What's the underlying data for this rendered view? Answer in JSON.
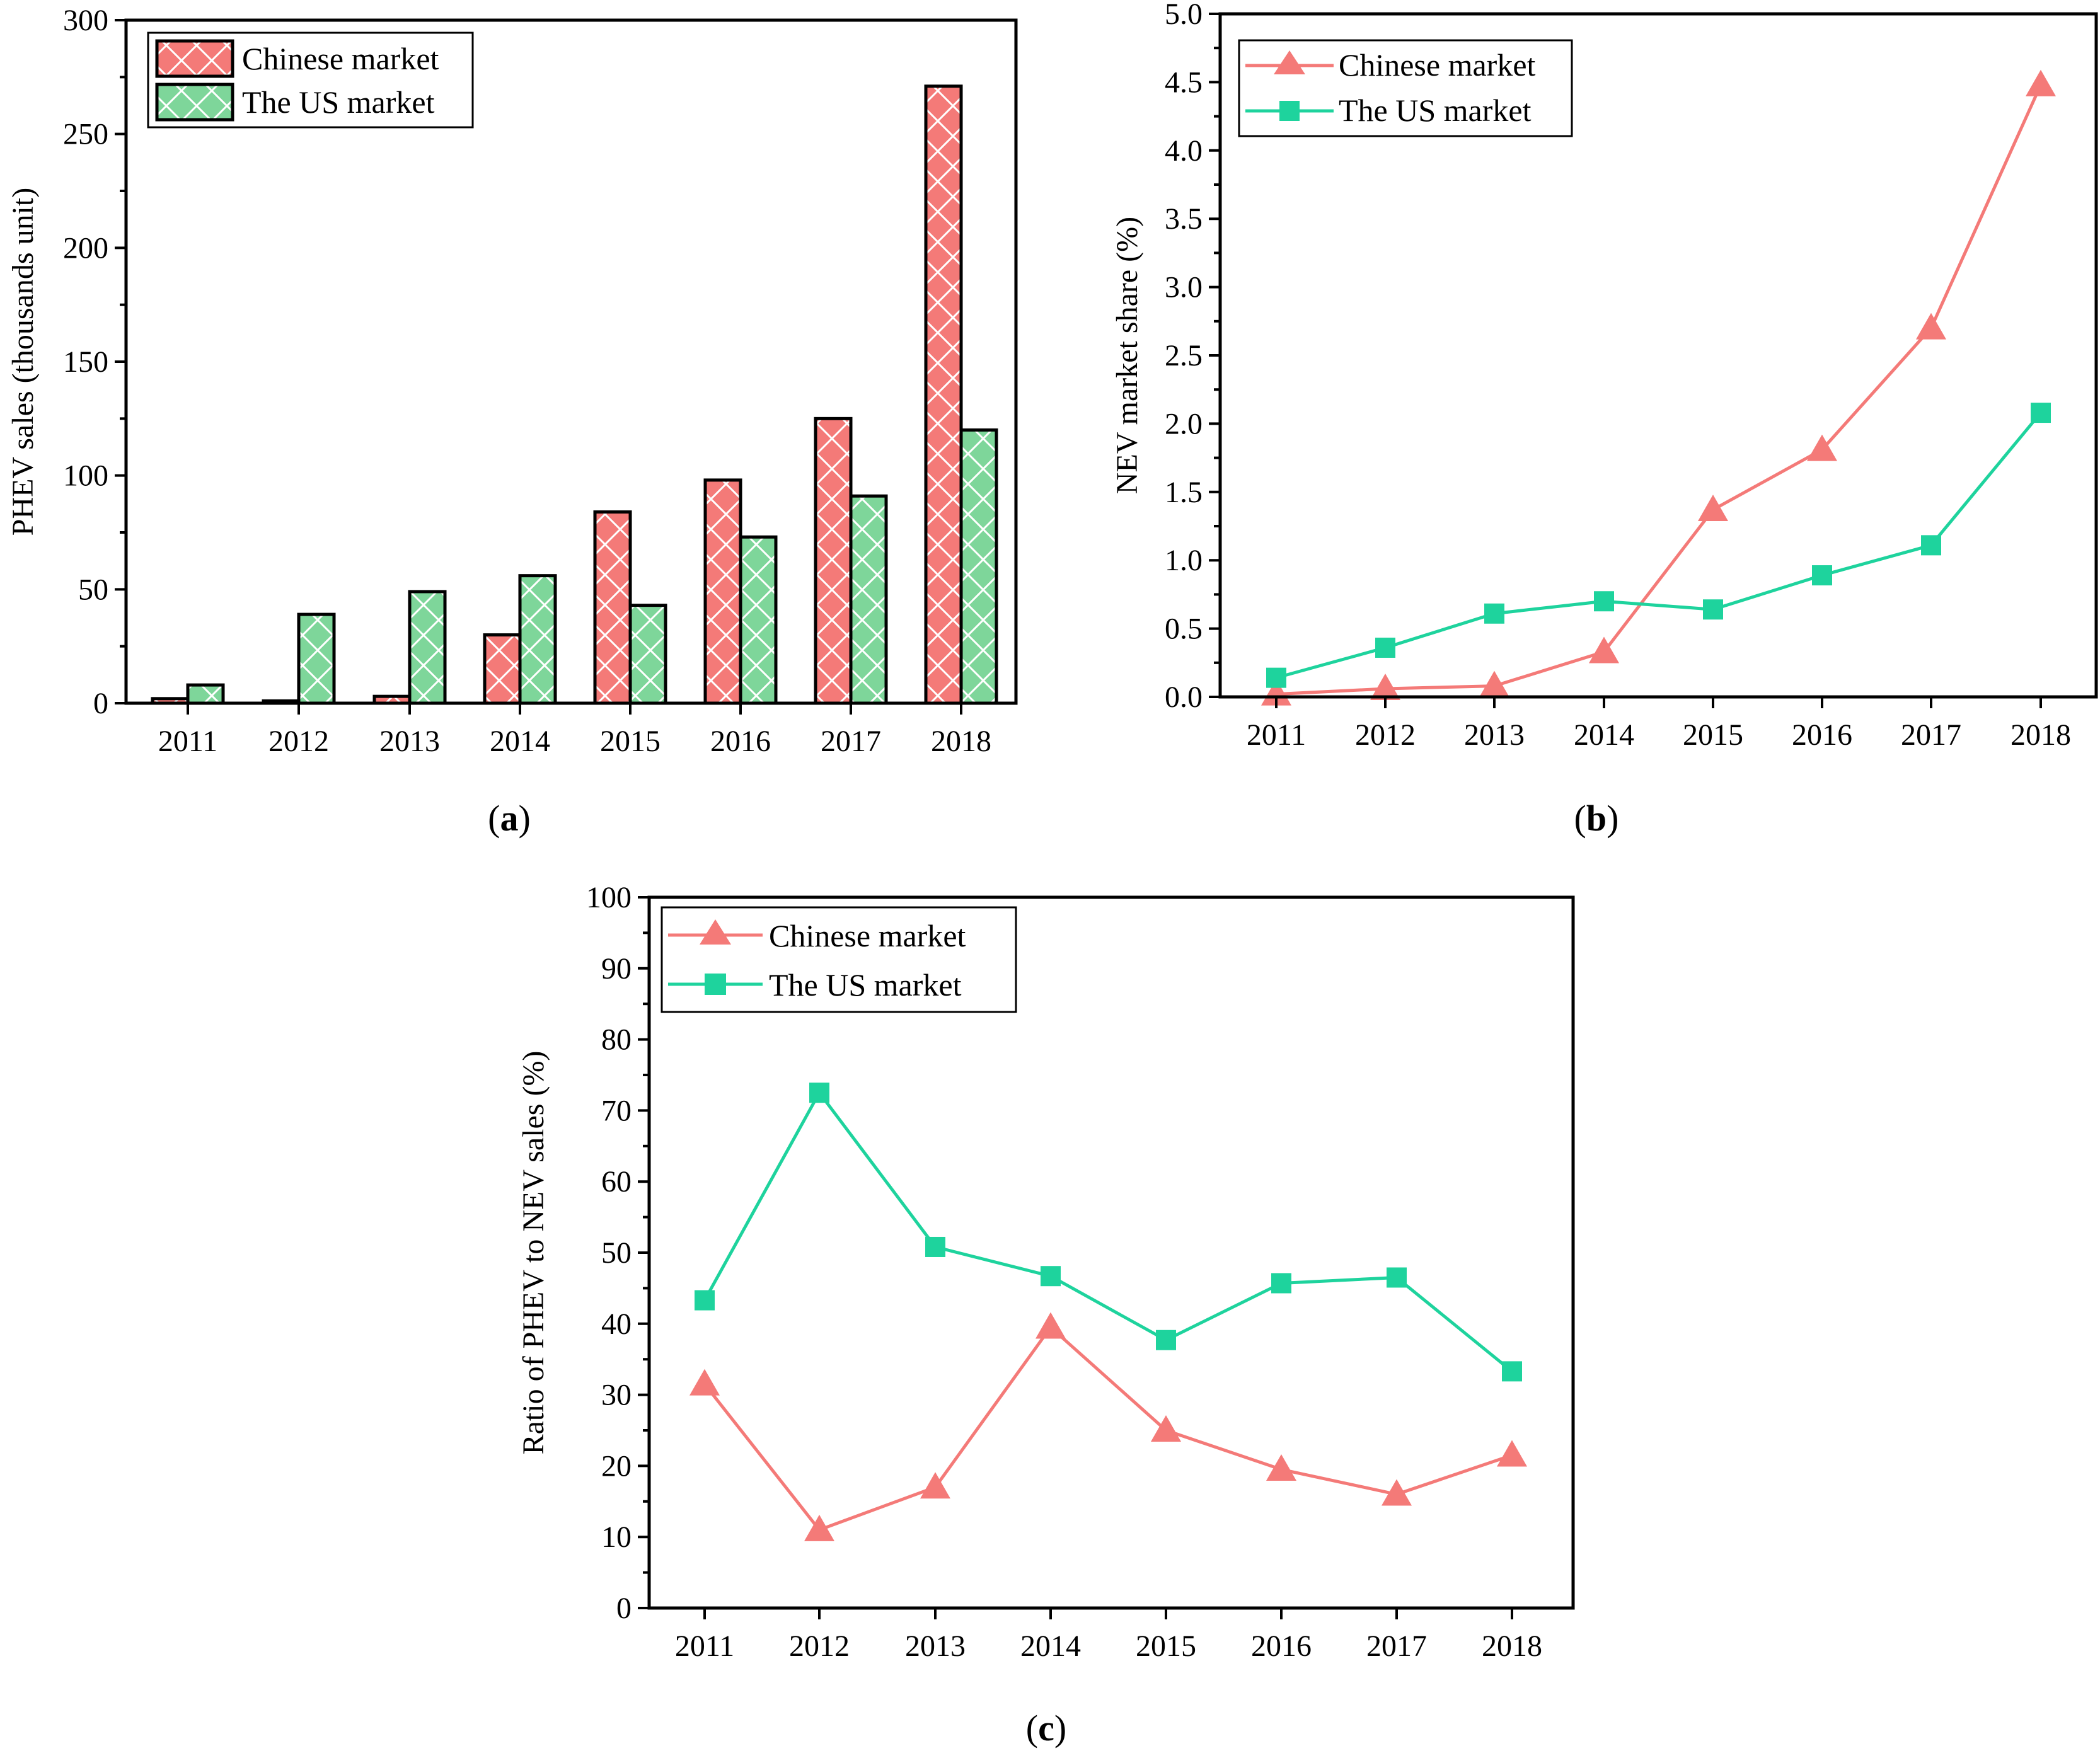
{
  "colors": {
    "chinese": "#f47a78",
    "us": "#1ed39d",
    "chinese_bar": "#f47a78",
    "us_bar": "#7ed69a"
  },
  "chart_data": [
    {
      "panel": "a",
      "type": "bar",
      "categories": [
        "2011",
        "2012",
        "2013",
        "2014",
        "2015",
        "2016",
        "2017",
        "2018"
      ],
      "series": [
        {
          "name": "Chinese market",
          "values": [
            2,
            1,
            3,
            30,
            84,
            98,
            125,
            271
          ]
        },
        {
          "name": "The US market",
          "values": [
            8,
            39,
            49,
            56,
            43,
            73,
            91,
            120
          ]
        }
      ],
      "xlabel": "",
      "ylabel": "PHEV sales (thousands unit)",
      "ylim": [
        0,
        300
      ],
      "yticks": [
        "0",
        "50",
        "100",
        "150",
        "200",
        "250",
        "300"
      ],
      "legend": "top-left",
      "caption_prefix": "(",
      "caption_letter": "a",
      "caption_suffix": ")"
    },
    {
      "panel": "b",
      "type": "line",
      "categories": [
        "2011",
        "2012",
        "2013",
        "2014",
        "2015",
        "2016",
        "2017",
        "2018"
      ],
      "series": [
        {
          "name": "Chinese market",
          "marker": "triangle",
          "values": [
            0.02,
            0.06,
            0.08,
            0.33,
            1.37,
            1.81,
            2.7,
            4.48
          ]
        },
        {
          "name": "The US market",
          "marker": "square",
          "values": [
            0.14,
            0.36,
            0.61,
            0.7,
            0.64,
            0.89,
            1.11,
            2.08
          ]
        }
      ],
      "xlabel": "",
      "ylabel": "NEV market share (%)",
      "ylim": [
        0,
        5
      ],
      "yticks": [
        "0.0",
        "0.5",
        "1.0",
        "1.5",
        "2.0",
        "2.5",
        "3.0",
        "3.5",
        "4.0",
        "4.5",
        "5.0"
      ],
      "legend": "top-left",
      "caption_prefix": "(",
      "caption_letter": "b",
      "caption_suffix": ")"
    },
    {
      "panel": "c",
      "type": "line",
      "categories": [
        "2011",
        "2012",
        "2013",
        "2014",
        "2015",
        "2016",
        "2017",
        "2018"
      ],
      "series": [
        {
          "name": "Chinese market",
          "marker": "triangle",
          "values": [
            31.5,
            11.0,
            17.0,
            39.5,
            25.0,
            19.5,
            16.0,
            21.5
          ]
        },
        {
          "name": "The US market",
          "marker": "square",
          "values": [
            43.3,
            72.5,
            50.8,
            46.7,
            37.7,
            45.7,
            46.5,
            33.3
          ]
        }
      ],
      "xlabel": "",
      "ylabel": "Ratio of PHEV to NEV sales (%)",
      "ylim": [
        0,
        100
      ],
      "yticks": [
        "0",
        "10",
        "20",
        "30",
        "40",
        "50",
        "60",
        "70",
        "80",
        "90",
        "100"
      ],
      "legend": "top-left",
      "caption_prefix": "(",
      "caption_letter": "c",
      "caption_suffix": ")"
    }
  ]
}
